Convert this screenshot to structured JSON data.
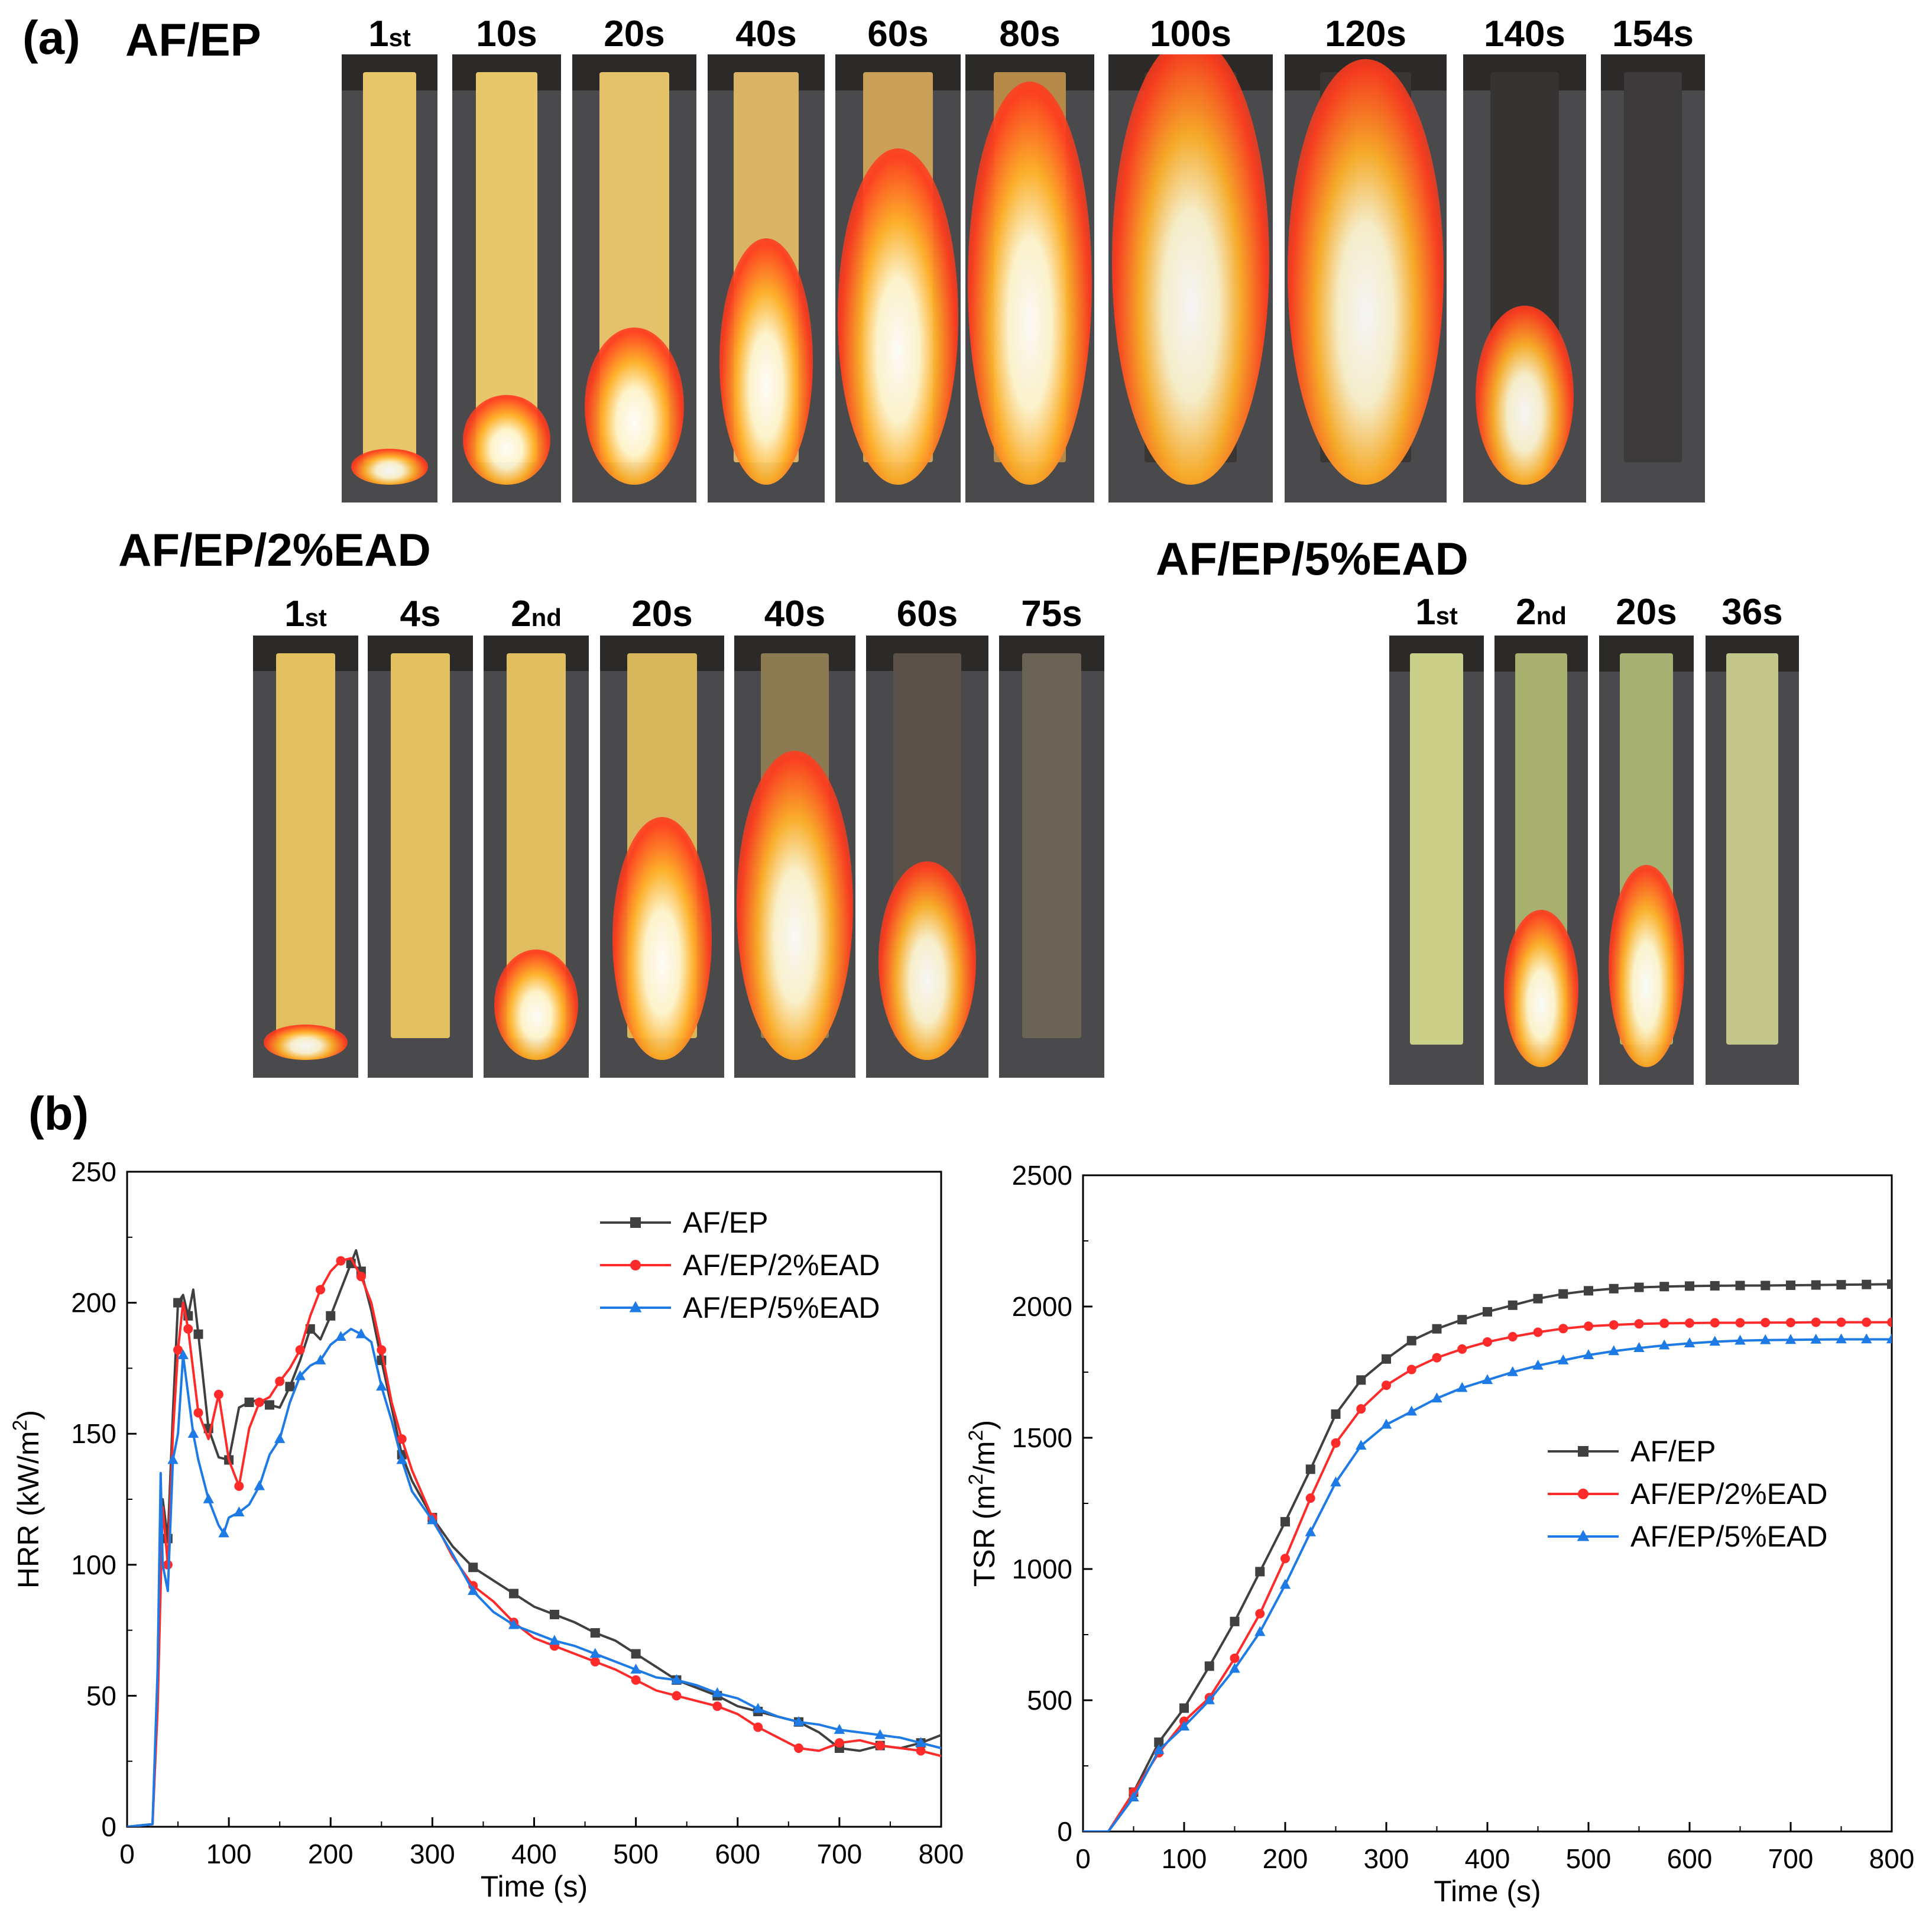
{
  "panel_a_label": "(a)",
  "panel_b_label": "(b)",
  "groups": [
    {
      "title": "AF/EP",
      "frames": [
        {
          "num": "1",
          "sup": "st",
          "state": 0.05,
          "tint": "#e8c66a"
        },
        {
          "num": "10s",
          "sup": "",
          "state": 0.2,
          "tint": "#e8c66a"
        },
        {
          "num": "20s",
          "sup": "",
          "state": 0.35,
          "tint": "#e4c26a"
        },
        {
          "num": "40s",
          "sup": "",
          "state": 0.55,
          "tint": "#d8b464"
        },
        {
          "num": "60s",
          "sup": "",
          "state": 0.75,
          "tint": "#caa058"
        },
        {
          "num": "80s",
          "sup": "",
          "state": 0.9,
          "tint": "#b58a48"
        },
        {
          "num": "100s",
          "sup": "",
          "state": 1.0,
          "tint": "#3a3634"
        },
        {
          "num": "120s",
          "sup": "",
          "state": 0.95,
          "tint": "#3a3634"
        },
        {
          "num": "140s",
          "sup": "",
          "state": 0.4,
          "tint": "#363332"
        },
        {
          "num": "154s",
          "sup": "",
          "state": 0.0,
          "tint": "#3c3a3a"
        }
      ]
    },
    {
      "title": "AF/EP/2%EAD",
      "frames": [
        {
          "num": "1",
          "sup": "st",
          "state": 0.05,
          "tint": "#e2c060"
        },
        {
          "num": "4s",
          "sup": "",
          "state": 0.0,
          "tint": "#e2c060"
        },
        {
          "num": "2",
          "sup": "nd",
          "state": 0.25,
          "tint": "#e0bd5e"
        },
        {
          "num": "20s",
          "sup": "",
          "state": 0.55,
          "tint": "#d8b75c"
        },
        {
          "num": "40s",
          "sup": "",
          "state": 0.7,
          "tint": "#8c7a52"
        },
        {
          "num": "60s",
          "sup": "",
          "state": 0.45,
          "tint": "#5a5248"
        },
        {
          "num": "75s",
          "sup": "",
          "state": 0.0,
          "tint": "#6b6456"
        }
      ]
    },
    {
      "title": "AF/EP/5%EAD",
      "frames": [
        {
          "num": "1",
          "sup": "st",
          "state": 0.0,
          "tint": "#c9cf86"
        },
        {
          "num": "2",
          "sup": "nd",
          "state": 0.35,
          "tint": "#a8b070"
        },
        {
          "num": "20s",
          "sup": "",
          "state": 0.45,
          "tint": "#a6b070"
        },
        {
          "num": "36s",
          "sup": "",
          "state": 0.0,
          "tint": "#c2c68a"
        }
      ]
    }
  ],
  "colors": {
    "AF/EP": "#404040",
    "AF/EP/2%EAD": "#ff2b2b",
    "AF/EP/5%EAD": "#1e7be6"
  },
  "chart_data": [
    {
      "type": "line",
      "title": "",
      "xlabel": "Time (s)",
      "ylabel_main": "HRR (kW/m",
      "ylabel_sup": "2",
      "ylabel_tail": ")",
      "xlim": [
        0,
        800
      ],
      "ylim": [
        0,
        250
      ],
      "xticks": [
        0,
        100,
        200,
        300,
        400,
        500,
        600,
        700,
        800
      ],
      "yticks": [
        0,
        50,
        100,
        150,
        200,
        250
      ],
      "legend_position": "top-right",
      "series": [
        {
          "name": "AF/EP",
          "marker": "square",
          "x": [
            0,
            25,
            30,
            35,
            40,
            45,
            50,
            55,
            60,
            65,
            70,
            75,
            80,
            90,
            100,
            110,
            120,
            130,
            140,
            150,
            160,
            170,
            180,
            190,
            200,
            210,
            220,
            225,
            230,
            240,
            250,
            260,
            270,
            280,
            300,
            320,
            340,
            360,
            380,
            400,
            420,
            440,
            460,
            480,
            500,
            520,
            540,
            560,
            580,
            600,
            620,
            640,
            660,
            680,
            700,
            720,
            740,
            760,
            780,
            800
          ],
          "y": [
            0,
            1,
            50,
            125,
            110,
            158,
            200,
            203,
            195,
            205,
            188,
            170,
            152,
            141,
            140,
            160,
            162,
            163,
            161,
            160,
            168,
            178,
            190,
            186,
            195,
            205,
            215,
            220,
            212,
            197,
            178,
            160,
            142,
            132,
            118,
            107,
            99,
            94,
            89,
            84,
            81,
            78,
            74,
            71,
            66,
            61,
            56,
            53,
            50,
            46,
            44,
            42,
            40,
            36,
            30,
            29,
            31,
            30,
            32,
            35
          ]
        },
        {
          "name": "AF/EP/2%EAD",
          "marker": "circle",
          "x": [
            0,
            25,
            30,
            35,
            40,
            45,
            50,
            55,
            60,
            65,
            70,
            80,
            90,
            100,
            110,
            120,
            130,
            140,
            150,
            160,
            170,
            180,
            190,
            200,
            210,
            220,
            230,
            240,
            250,
            260,
            270,
            280,
            300,
            320,
            340,
            360,
            380,
            400,
            420,
            440,
            460,
            480,
            500,
            520,
            540,
            560,
            580,
            600,
            620,
            640,
            660,
            680,
            700,
            720,
            740,
            760,
            780,
            800
          ],
          "y": [
            0,
            1,
            45,
            122,
            100,
            150,
            182,
            200,
            190,
            174,
            158,
            148,
            165,
            140,
            130,
            152,
            162,
            164,
            170,
            175,
            182,
            195,
            205,
            212,
            216,
            217,
            210,
            200,
            182,
            162,
            148,
            136,
            118,
            103,
            92,
            86,
            78,
            72,
            69,
            66,
            63,
            60,
            56,
            52,
            50,
            48,
            46,
            43,
            38,
            34,
            30,
            29,
            32,
            33,
            31,
            30,
            29,
            27
          ]
        },
        {
          "name": "AF/EP/5%EAD",
          "marker": "triangle",
          "x": [
            0,
            25,
            30,
            33,
            35,
            40,
            45,
            50,
            55,
            60,
            65,
            70,
            80,
            90,
            95,
            100,
            110,
            120,
            130,
            140,
            150,
            160,
            170,
            180,
            190,
            200,
            210,
            220,
            230,
            240,
            250,
            260,
            270,
            280,
            300,
            320,
            340,
            360,
            380,
            400,
            420,
            440,
            460,
            480,
            500,
            520,
            540,
            560,
            580,
            600,
            620,
            640,
            660,
            680,
            700,
            720,
            740,
            760,
            780,
            800
          ],
          "y": [
            0,
            1,
            60,
            135,
            100,
            90,
            140,
            150,
            180,
            165,
            150,
            140,
            125,
            115,
            112,
            118,
            120,
            123,
            130,
            142,
            148,
            162,
            172,
            176,
            178,
            184,
            187,
            190,
            188,
            185,
            168,
            155,
            140,
            128,
            117,
            104,
            90,
            82,
            77,
            74,
            71,
            69,
            66,
            63,
            60,
            57,
            56,
            54,
            51,
            49,
            45,
            42,
            40,
            39,
            37,
            36,
            35,
            34,
            32,
            30
          ]
        }
      ]
    },
    {
      "type": "line",
      "title": "",
      "xlabel": "Time (s)",
      "ylabel_main": "TSR (m",
      "ylabel_sup": "2",
      "ylabel_mid": "/m",
      "ylabel_sup2": "2",
      "ylabel_tail": ")",
      "xlim": [
        0,
        800
      ],
      "ylim": [
        0,
        2500
      ],
      "xticks": [
        0,
        100,
        200,
        300,
        400,
        500,
        600,
        700,
        800
      ],
      "yticks": [
        0,
        500,
        1000,
        1500,
        2000,
        2500
      ],
      "legend_position": "center-right",
      "series": [
        {
          "name": "AF/EP",
          "marker": "square",
          "x": [
            0,
            25,
            50,
            75,
            100,
            125,
            150,
            175,
            200,
            225,
            250,
            275,
            300,
            325,
            350,
            375,
            400,
            425,
            450,
            475,
            500,
            525,
            550,
            575,
            600,
            625,
            650,
            675,
            700,
            725,
            750,
            775,
            800
          ],
          "y": [
            0,
            0,
            150,
            340,
            470,
            630,
            800,
            990,
            1180,
            1380,
            1590,
            1720,
            1800,
            1870,
            1915,
            1950,
            1980,
            2005,
            2030,
            2048,
            2060,
            2068,
            2073,
            2076,
            2078,
            2079,
            2080,
            2080,
            2081,
            2082,
            2083,
            2084,
            2085
          ]
        },
        {
          "name": "AF/EP/2%EAD",
          "marker": "circle",
          "x": [
            0,
            25,
            50,
            75,
            100,
            125,
            150,
            175,
            200,
            225,
            250,
            275,
            300,
            325,
            350,
            375,
            400,
            425,
            450,
            475,
            500,
            525,
            550,
            575,
            600,
            625,
            650,
            675,
            700,
            725,
            750,
            775,
            800
          ],
          "y": [
            0,
            0,
            150,
            300,
            420,
            510,
            660,
            830,
            1040,
            1270,
            1480,
            1610,
            1700,
            1760,
            1805,
            1838,
            1865,
            1885,
            1902,
            1916,
            1925,
            1930,
            1934,
            1936,
            1937,
            1938,
            1938,
            1939,
            1939,
            1940,
            1940,
            1940,
            1940
          ]
        },
        {
          "name": "AF/EP/5%EAD",
          "marker": "triangle",
          "x": [
            0,
            25,
            50,
            75,
            100,
            125,
            150,
            175,
            200,
            225,
            250,
            275,
            300,
            325,
            350,
            375,
            400,
            425,
            450,
            475,
            500,
            525,
            550,
            575,
            600,
            625,
            650,
            675,
            700,
            725,
            750,
            775,
            800
          ],
          "y": [
            0,
            0,
            130,
            310,
            400,
            500,
            620,
            760,
            940,
            1140,
            1330,
            1470,
            1550,
            1600,
            1650,
            1690,
            1720,
            1750,
            1775,
            1795,
            1815,
            1830,
            1842,
            1852,
            1860,
            1866,
            1870,
            1872,
            1873,
            1874,
            1875,
            1875,
            1875
          ]
        }
      ]
    }
  ]
}
